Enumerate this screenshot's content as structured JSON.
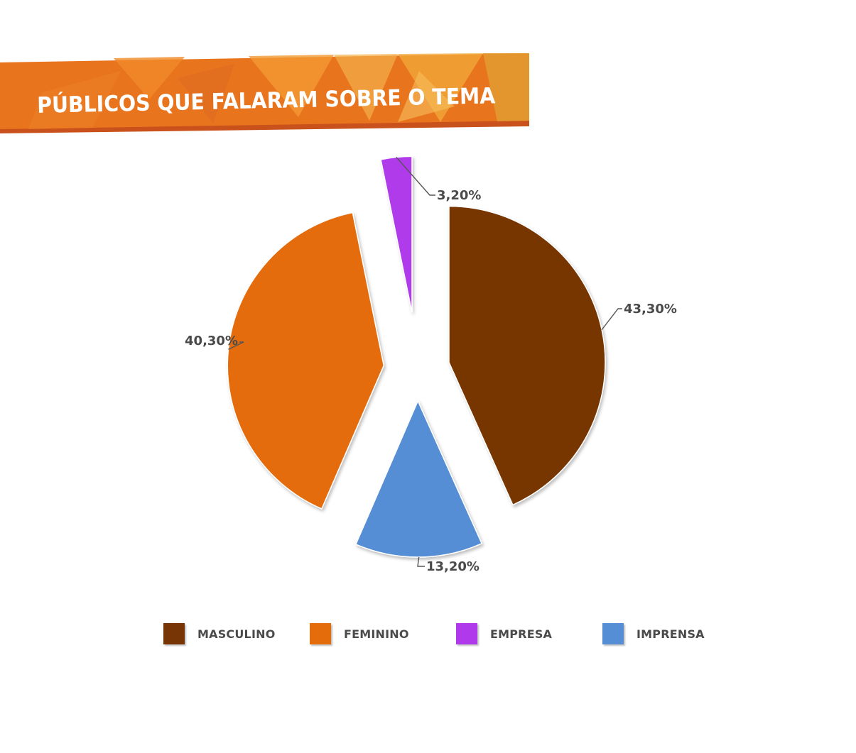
{
  "banner": {
    "title": "PÚBLICOS QUE FALARAM SOBRE O TEMA",
    "colors": {
      "orange": "#E8741E",
      "light": "#F2A93B",
      "shadow": "#C9521C"
    }
  },
  "chart_data": {
    "type": "pie",
    "style": "exploded",
    "slices": [
      {
        "name": "MASCULINO",
        "value": 43.3,
        "label": "43,30%",
        "color": "#773505"
      },
      {
        "name": "IMPRENSA",
        "value": 13.2,
        "label": "13,20%",
        "color": "#558ED5"
      },
      {
        "name": "FEMININO",
        "value": 40.3,
        "label": "40,30%",
        "color": "#E46C0A"
      },
      {
        "name": "EMPRESA",
        "value": 3.2,
        "label": "3,20%",
        "color": "#B03AEB"
      }
    ],
    "legend": {
      "position": "bottom",
      "items": [
        {
          "label": "MASCULINO",
          "color": "#773505"
        },
        {
          "label": "FEMININO",
          "color": "#E46C0A"
        },
        {
          "label": "EMPRESA",
          "color": "#B03AEB"
        },
        {
          "label": "IMPRENSA",
          "color": "#558ED5"
        }
      ]
    }
  }
}
